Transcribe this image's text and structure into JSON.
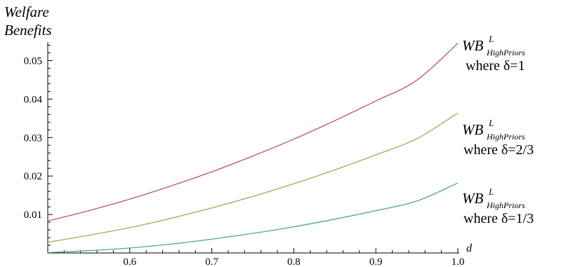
{
  "chart_data": {
    "type": "line",
    "title": "",
    "ylabel": "Welfare Benefits",
    "xlabel": "d",
    "xlim": [
      0.5,
      1.0
    ],
    "ylim": [
      0,
      0.057
    ],
    "grid": false,
    "x_ticks": [
      "0.6",
      "0.7",
      "0.8",
      "0.9",
      "1.0"
    ],
    "y_ticks": [
      "0.01",
      "0.02",
      "0.03",
      "0.04",
      "0.05"
    ],
    "x": [
      0.5,
      0.55,
      0.6,
      0.65,
      0.7,
      0.75,
      0.8,
      0.85,
      0.9,
      0.95,
      1.0
    ],
    "series": [
      {
        "name": "WB^L_HighPriors where δ=1",
        "label_main": "WB",
        "label_sup": "L",
        "label_sub": "HighPriors",
        "label_where": "where δ=1",
        "color": "#c0507a",
        "values": [
          0.0083,
          0.011,
          0.014,
          0.0174,
          0.0211,
          0.0252,
          0.0296,
          0.0344,
          0.0395,
          0.0449,
          0.0545
        ]
      },
      {
        "name": "WB^L_HighPriors where δ=2/3",
        "label_main": "WB",
        "label_sup": "L",
        "label_sub": "HighPriors",
        "label_where": "where δ=2/3",
        "color": "#b8a04e",
        "values": [
          0.0028,
          0.0046,
          0.0066,
          0.009,
          0.0117,
          0.0147,
          0.018,
          0.0216,
          0.0255,
          0.0297,
          0.0364
        ]
      },
      {
        "name": "WB^L_HighPriors where δ=1/3",
        "label_main": "WB",
        "label_sup": "L",
        "label_sub": "HighPriors",
        "label_where": "where δ=1/3",
        "color": "#4caf6a",
        "values": [
          0.0001,
          0.0006,
          0.0013,
          0.0023,
          0.0036,
          0.0051,
          0.0068,
          0.0088,
          0.011,
          0.0135,
          0.0182
        ]
      }
    ]
  }
}
